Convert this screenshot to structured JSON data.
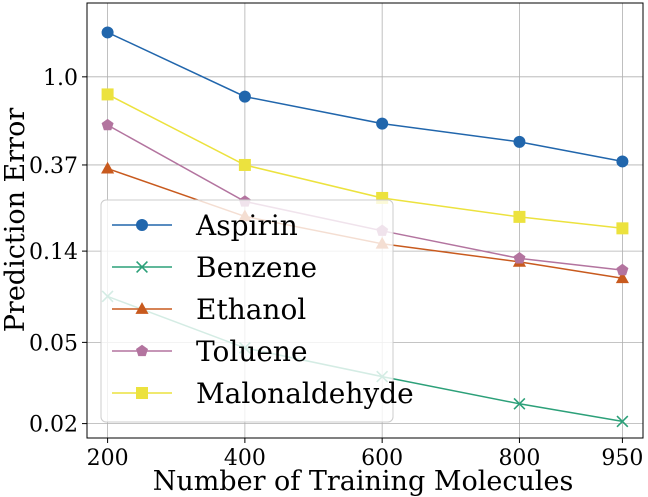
{
  "chart_data": {
    "type": "line",
    "xlabel": "Number of Training Molecules",
    "ylabel": "Prediction Error",
    "y_scale": "log",
    "x_ticks": [
      200,
      400,
      600,
      800,
      950
    ],
    "y_ticks": [
      0.02,
      0.05,
      0.14,
      0.37,
      1.0
    ],
    "y_tick_labels": [
      "0.02",
      "0.05",
      "0.14",
      "0.37",
      "1.0"
    ],
    "xlim": [
      170,
      980
    ],
    "ylim": [
      0.017,
      2.3
    ],
    "grid": true,
    "legend_position": "lower-left",
    "series": [
      {
        "name": "Aspirin",
        "marker": "circle",
        "color": "#2166ac",
        "x": [
          200,
          400,
          600,
          800,
          950
        ],
        "y": [
          1.65,
          0.8,
          0.59,
          0.48,
          0.385
        ]
      },
      {
        "name": "Benzene",
        "marker": "x",
        "color": "#2ca079",
        "x": [
          200,
          400,
          600,
          800,
          950
        ],
        "y": [
          0.084,
          0.047,
          0.034,
          0.025,
          0.0205
        ]
      },
      {
        "name": "Ethanol",
        "marker": "triangle",
        "color": "#c85a1e",
        "x": [
          200,
          400,
          600,
          800,
          950
        ],
        "y": [
          0.355,
          0.207,
          0.152,
          0.124,
          0.103
        ]
      },
      {
        "name": "Toluene",
        "marker": "pentagon",
        "color": "#b3749f",
        "x": [
          200,
          400,
          600,
          800,
          950
        ],
        "y": [
          0.58,
          0.245,
          0.176,
          0.129,
          0.113
        ]
      },
      {
        "name": "Malonaldehyde",
        "marker": "square",
        "color": "#ece23e",
        "x": [
          200,
          400,
          600,
          800,
          950
        ],
        "y": [
          0.82,
          0.37,
          0.255,
          0.206,
          0.181
        ]
      }
    ]
  }
}
